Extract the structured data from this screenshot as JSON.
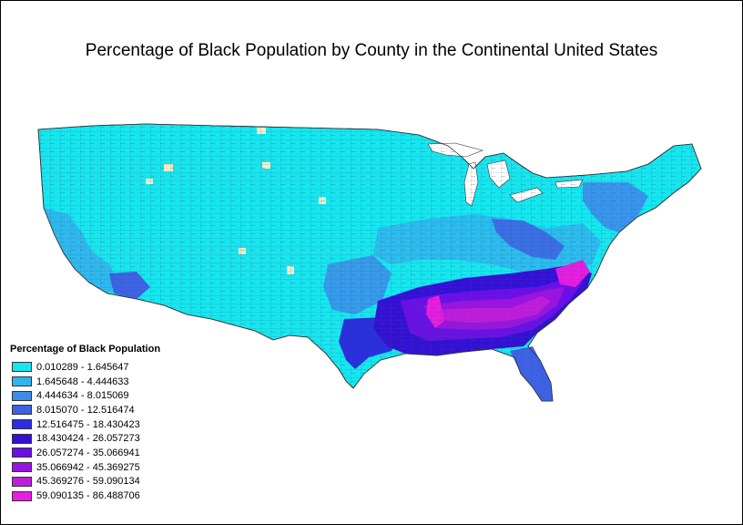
{
  "title": "Percentage of Black Population by County in the Continental United States",
  "legend": {
    "title": "Percentage of Black Population",
    "classes": [
      {
        "label": "0.010289 - 1.645647",
        "color": "#16e6f0"
      },
      {
        "label": "1.645648 - 4.444633",
        "color": "#30b4ef"
      },
      {
        "label": "4.444634 - 8.015069",
        "color": "#3d8ceb"
      },
      {
        "label": "8.015070 - 12.516474",
        "color": "#3e62e4"
      },
      {
        "label": "12.516475 - 18.430423",
        "color": "#2a2ee0"
      },
      {
        "label": "18.430424 - 26.057273",
        "color": "#3410d6"
      },
      {
        "label": "26.057274 - 35.066941",
        "color": "#6a10e6"
      },
      {
        "label": "35.066942 - 45.369275",
        "color": "#9a14e0"
      },
      {
        "label": "45.369276 - 59.090134",
        "color": "#c01cdc"
      },
      {
        "label": "59.090135 - 86.488706",
        "color": "#e61ee0"
      }
    ]
  },
  "colors": {
    "no_data": "#f5ecc8",
    "border": "#3a3a3a"
  }
}
